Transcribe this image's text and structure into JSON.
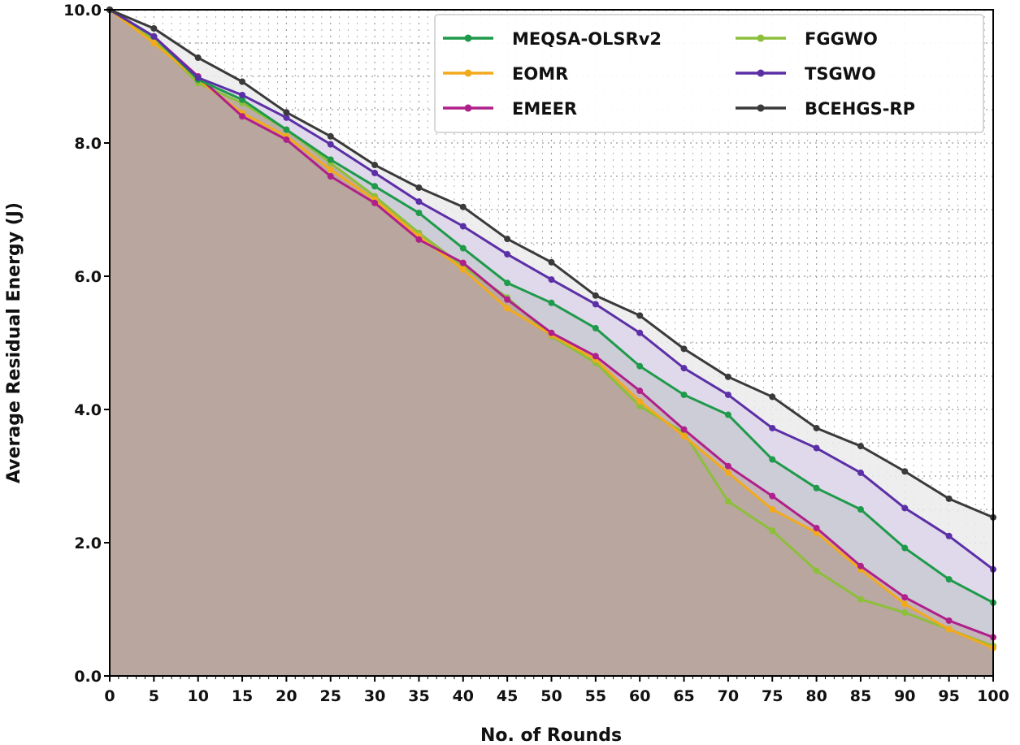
{
  "chart_data": {
    "type": "line",
    "title": "",
    "xlabel": "No. of Rounds",
    "ylabel": "Average Residual Energy (J)",
    "xlim": [
      0,
      100
    ],
    "ylim": [
      0,
      10
    ],
    "xticks": [
      "0",
      "5",
      "10",
      "15",
      "20",
      "25",
      "30",
      "35",
      "40",
      "45",
      "50",
      "55",
      "60",
      "65",
      "70",
      "75",
      "80",
      "85",
      "90",
      "95",
      "100"
    ],
    "yticks": [
      "0.0",
      "2.0",
      "4.0",
      "6.0",
      "8.0",
      "10.0"
    ],
    "grid": true,
    "filled_area": true,
    "legend_position": "top-right",
    "x": [
      0,
      5,
      10,
      15,
      20,
      25,
      30,
      35,
      40,
      45,
      50,
      55,
      60,
      65,
      70,
      75,
      80,
      85,
      90,
      95,
      100
    ],
    "series": [
      {
        "name": "BCEHGS-RP",
        "color": "#3a3a3a",
        "fill": "#ebebeb",
        "values": [
          10,
          9.72,
          9.28,
          8.92,
          8.46,
          8.1,
          7.67,
          7.33,
          7.04,
          6.56,
          6.21,
          5.71,
          5.41,
          4.91,
          4.49,
          4.19,
          3.72,
          3.45,
          3.07,
          2.66,
          2.38
        ]
      },
      {
        "name": "TSGWO",
        "color": "#5b2fa6",
        "fill": "#ddd3ea",
        "values": [
          10,
          9.6,
          8.98,
          8.72,
          8.38,
          7.98,
          7.55,
          7.12,
          6.75,
          6.33,
          5.95,
          5.58,
          5.15,
          4.62,
          4.22,
          3.72,
          3.42,
          3.05,
          2.52,
          2.1,
          1.6
        ]
      },
      {
        "name": "MEQSA-OLSRv2",
        "color": "#1e9a4a",
        "fill": "#c8cbd3",
        "values": [
          10,
          9.6,
          8.95,
          8.65,
          8.2,
          7.75,
          7.35,
          6.95,
          6.42,
          5.9,
          5.6,
          5.22,
          4.65,
          4.22,
          3.92,
          3.25,
          2.82,
          2.5,
          1.92,
          1.45,
          1.1
        ]
      },
      {
        "name": "EMEER",
        "color": "#b0208a",
        "fill": "#c2afb5",
        "values": [
          10,
          9.6,
          9.0,
          8.4,
          8.05,
          7.5,
          7.1,
          6.55,
          6.2,
          5.65,
          5.15,
          4.8,
          4.28,
          3.7,
          3.15,
          2.7,
          2.22,
          1.65,
          1.18,
          0.83,
          0.58
        ]
      },
      {
        "name": "EOMR",
        "color": "#f2aa1c",
        "fill": "#b9a79f",
        "values": [
          10,
          9.5,
          8.95,
          8.45,
          8.1,
          7.6,
          7.15,
          6.6,
          6.1,
          5.52,
          5.12,
          4.75,
          4.12,
          3.6,
          3.05,
          2.5,
          2.15,
          1.6,
          1.08,
          0.7,
          0.42
        ]
      },
      {
        "name": "FGGWO",
        "color": "#8cbf3a",
        "fill": "#b8a69e",
        "values": [
          10,
          9.55,
          8.9,
          8.6,
          8.2,
          7.7,
          7.2,
          6.65,
          6.15,
          5.68,
          5.1,
          4.7,
          4.05,
          3.65,
          2.62,
          2.18,
          1.58,
          1.15,
          0.95,
          0.7,
          0.45
        ]
      }
    ],
    "legend_order": [
      "MEQSA-OLSRv2",
      "EOMR",
      "EMEER",
      "FGGWO",
      "TSGWO",
      "BCEHGS-RP"
    ]
  }
}
